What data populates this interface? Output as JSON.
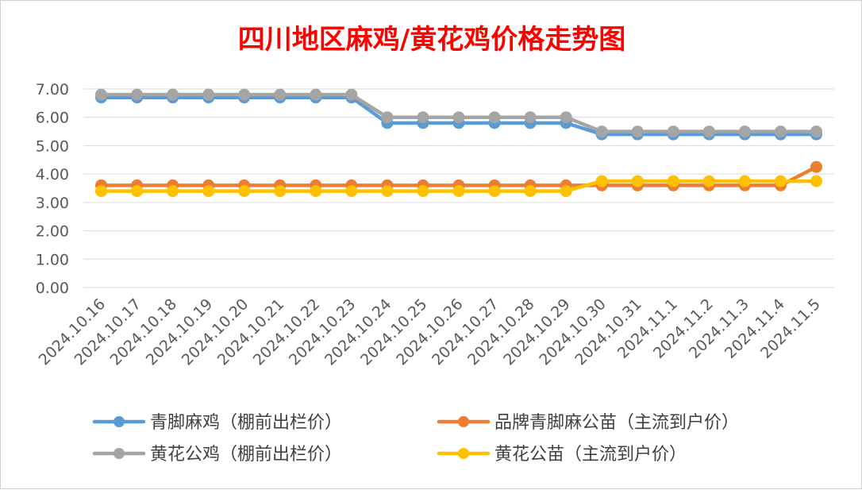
{
  "chart_data": {
    "type": "line",
    "title": "四川地区麻鸡/黄花鸡价格走势图",
    "categories": [
      "2024.10.16",
      "2024.10.17",
      "2024.10.18",
      "2024.10.19",
      "2024.10.20",
      "2024.10.21",
      "2024.10.22",
      "2024.10.23",
      "2024.10.24",
      "2024.10.25",
      "2024.10.26",
      "2024.10.27",
      "2024.10.28",
      "2024.10.29",
      "2024.10.30",
      "2024.10.31",
      "2024.11.1",
      "2024.11.2",
      "2024.11.3",
      "2024.11.4",
      "2024.11.5"
    ],
    "yticks": [
      "0.00",
      "1.00",
      "2.00",
      "3.00",
      "4.00",
      "5.00",
      "6.00",
      "7.00"
    ],
    "ylim": [
      0,
      7
    ],
    "grid": true,
    "legend_position": "bottom",
    "series": [
      {
        "name": "青脚麻鸡（棚前出栏价）",
        "color": "#5b9bd5",
        "values": [
          6.7,
          6.7,
          6.7,
          6.7,
          6.7,
          6.7,
          6.7,
          6.7,
          5.8,
          5.8,
          5.8,
          5.8,
          5.8,
          5.8,
          5.4,
          5.4,
          5.4,
          5.4,
          5.4,
          5.4,
          5.4
        ]
      },
      {
        "name": "品牌青脚麻公苗（主流到户价）",
        "color": "#ed7d31",
        "values": [
          3.6,
          3.6,
          3.6,
          3.6,
          3.6,
          3.6,
          3.6,
          3.6,
          3.6,
          3.6,
          3.6,
          3.6,
          3.6,
          3.6,
          3.6,
          3.6,
          3.6,
          3.6,
          3.6,
          3.6,
          4.25
        ]
      },
      {
        "name": "黄花公鸡（棚前出栏价）",
        "color": "#a5a5a5",
        "values": [
          6.8,
          6.8,
          6.8,
          6.8,
          6.8,
          6.8,
          6.8,
          6.8,
          6.0,
          6.0,
          6.0,
          6.0,
          6.0,
          6.0,
          5.5,
          5.5,
          5.5,
          5.5,
          5.5,
          5.5,
          5.5
        ]
      },
      {
        "name": "黄花公苗（主流到户价）",
        "color": "#ffc000",
        "values": [
          3.4,
          3.4,
          3.4,
          3.4,
          3.4,
          3.4,
          3.4,
          3.4,
          3.4,
          3.4,
          3.4,
          3.4,
          3.4,
          3.4,
          3.75,
          3.75,
          3.75,
          3.75,
          3.75,
          3.75,
          3.75
        ]
      }
    ]
  }
}
